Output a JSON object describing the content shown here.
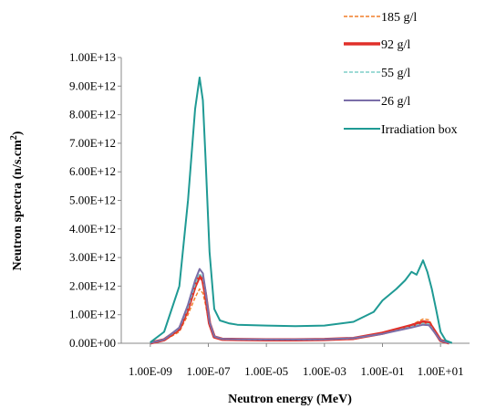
{
  "chart_data": {
    "type": "line",
    "xlabel": "Neutron energy (MeV)",
    "ylabel_main": "Neutron spectra (n/s.cm",
    "ylabel_sup": "2",
    "ylabel_end": ")",
    "xscale": "log",
    "xlim": [
      1e-10,
      100
    ],
    "ylim": [
      0,
      10000000000000.0
    ],
    "y_ticks": [
      0,
      1000000000000.0,
      2000000000000.0,
      3000000000000.0,
      4000000000000.0,
      5000000000000.0,
      6000000000000.0,
      7000000000000.0,
      8000000000000.0,
      9000000000000.0,
      10000000000000.0
    ],
    "y_tick_labels": [
      "0.00E+00",
      "1.00E+12",
      "2.00E+12",
      "3.00E+12",
      "4.00E+12",
      "5.00E+12",
      "6.00E+12",
      "7.00E+12",
      "8.00E+12",
      "9.00E+12",
      "1.00E+13"
    ],
    "x_ticks": [
      1e-09,
      1e-07,
      1e-05,
      0.001,
      0.1,
      10
    ],
    "x_tick_labels": [
      "1.00E-09",
      "1.00E-07",
      "1.00E-05",
      "1.00E-03",
      "1.00E-01",
      "1.00E+01"
    ],
    "grid": false,
    "legend_position": "top-right",
    "series": [
      {
        "name": "185 g/l",
        "color": "#f07f2a",
        "style": "dashed",
        "points": [
          [
            1e-09,
            10000000000.0
          ],
          [
            3e-09,
            100000000000.0
          ],
          [
            1e-08,
            400000000000.0
          ],
          [
            2e-08,
            1000000000000.0
          ],
          [
            3.5e-08,
            1600000000000.0
          ],
          [
            5e-08,
            1900000000000.0
          ],
          [
            6.5e-08,
            1750000000000.0
          ],
          [
            8e-08,
            1350000000000.0
          ],
          [
            1.1e-07,
            600000000000.0
          ],
          [
            1.6e-07,
            200000000000.0
          ],
          [
            3e-07,
            130000000000.0
          ],
          [
            1e-06,
            120000000000.0
          ],
          [
            1e-05,
            110000000000.0
          ],
          [
            0.0001,
            110000000000.0
          ],
          [
            0.001,
            120000000000.0
          ],
          [
            0.01,
            160000000000.0
          ],
          [
            0.1,
            350000000000.0
          ],
          [
            1,
            650000000000.0
          ],
          [
            2.5,
            850000000000.0
          ],
          [
            4,
            820000000000.0
          ],
          [
            6,
            500000000000.0
          ],
          [
            10,
            100000000000.0
          ],
          [
            20,
            10000000000.0
          ]
        ]
      },
      {
        "name": "92 g/l",
        "color": "#e0302a",
        "style": "thick",
        "points": [
          [
            1e-09,
            10000000000.0
          ],
          [
            3e-09,
            120000000000.0
          ],
          [
            1e-08,
            500000000000.0
          ],
          [
            2e-08,
            1200000000000.0
          ],
          [
            3.5e-08,
            2000000000000.0
          ],
          [
            5e-08,
            2350000000000.0
          ],
          [
            6.5e-08,
            2200000000000.0
          ],
          [
            8e-08,
            1700000000000.0
          ],
          [
            1.1e-07,
            700000000000.0
          ],
          [
            1.6e-07,
            220000000000.0
          ],
          [
            3e-07,
            140000000000.0
          ],
          [
            1e-06,
            130000000000.0
          ],
          [
            1e-05,
            120000000000.0
          ],
          [
            0.0001,
            120000000000.0
          ],
          [
            0.001,
            130000000000.0
          ],
          [
            0.01,
            170000000000.0
          ],
          [
            0.1,
            350000000000.0
          ],
          [
            1,
            620000000000.0
          ],
          [
            2.5,
            750000000000.0
          ],
          [
            4,
            720000000000.0
          ],
          [
            6,
            450000000000.0
          ],
          [
            10,
            100000000000.0
          ],
          [
            20,
            10000000000.0
          ]
        ]
      },
      {
        "name": "55 g/l",
        "color": "#7fcfc8",
        "style": "dashed",
        "points": [
          [
            1e-09,
            10000000000.0
          ],
          [
            3e-09,
            120000000000.0
          ],
          [
            1e-08,
            520000000000.0
          ],
          [
            2e-08,
            1250000000000.0
          ],
          [
            3.5e-08,
            2050000000000.0
          ],
          [
            5e-08,
            2450000000000.0
          ],
          [
            6.5e-08,
            2300000000000.0
          ],
          [
            8e-08,
            1750000000000.0
          ],
          [
            1.1e-07,
            720000000000.0
          ],
          [
            1.6e-07,
            230000000000.0
          ],
          [
            3e-07,
            140000000000.0
          ],
          [
            1e-06,
            130000000000.0
          ],
          [
            1e-05,
            120000000000.0
          ],
          [
            0.0001,
            120000000000.0
          ],
          [
            0.001,
            130000000000.0
          ],
          [
            0.01,
            170000000000.0
          ],
          [
            0.1,
            330000000000.0
          ],
          [
            1,
            580000000000.0
          ],
          [
            2.5,
            700000000000.0
          ],
          [
            4,
            680000000000.0
          ],
          [
            6,
            420000000000.0
          ],
          [
            10,
            100000000000.0
          ],
          [
            20,
            10000000000.0
          ]
        ]
      },
      {
        "name": "26 g/l",
        "color": "#7a6ea8",
        "style": "solid",
        "points": [
          [
            1e-09,
            10000000000.0
          ],
          [
            3e-09,
            130000000000.0
          ],
          [
            1e-08,
            550000000000.0
          ],
          [
            2e-08,
            1350000000000.0
          ],
          [
            3.5e-08,
            2200000000000.0
          ],
          [
            5e-08,
            2600000000000.0
          ],
          [
            6.5e-08,
            2450000000000.0
          ],
          [
            8e-08,
            1850000000000.0
          ],
          [
            1.1e-07,
            750000000000.0
          ],
          [
            1.6e-07,
            240000000000.0
          ],
          [
            3e-07,
            150000000000.0
          ],
          [
            1e-06,
            140000000000.0
          ],
          [
            1e-05,
            130000000000.0
          ],
          [
            0.0001,
            130000000000.0
          ],
          [
            0.001,
            140000000000.0
          ],
          [
            0.01,
            180000000000.0
          ],
          [
            0.1,
            330000000000.0
          ],
          [
            1,
            550000000000.0
          ],
          [
            2.5,
            650000000000.0
          ],
          [
            4,
            630000000000.0
          ],
          [
            6,
            400000000000.0
          ],
          [
            10,
            100000000000.0
          ],
          [
            20,
            10000000000.0
          ]
        ]
      },
      {
        "name": "Irradiation box",
        "color": "#1f9a94",
        "style": "solid",
        "points": [
          [
            1e-09,
            30000000000.0
          ],
          [
            3e-09,
            400000000000.0
          ],
          [
            1e-08,
            2000000000000.0
          ],
          [
            2e-08,
            5000000000000.0
          ],
          [
            3.5e-08,
            8200000000000.0
          ],
          [
            5e-08,
            9300000000000.0
          ],
          [
            6.5e-08,
            8500000000000.0
          ],
          [
            8e-08,
            6500000000000.0
          ],
          [
            1.1e-07,
            3200000000000.0
          ],
          [
            1.6e-07,
            1200000000000.0
          ],
          [
            2.5e-07,
            800000000000.0
          ],
          [
            5e-07,
            700000000000.0
          ],
          [
            1e-06,
            650000000000.0
          ],
          [
            1e-05,
            620000000000.0
          ],
          [
            0.0001,
            600000000000.0
          ],
          [
            0.001,
            620000000000.0
          ],
          [
            0.01,
            750000000000.0
          ],
          [
            0.05,
            1100000000000.0
          ],
          [
            0.1,
            1500000000000.0
          ],
          [
            0.3,
            1900000000000.0
          ],
          [
            0.6,
            2200000000000.0
          ],
          [
            1,
            2500000000000.0
          ],
          [
            1.5,
            2400000000000.0
          ],
          [
            2.5,
            2900000000000.0
          ],
          [
            3.5,
            2500000000000.0
          ],
          [
            5,
            1900000000000.0
          ],
          [
            7,
            1200000000000.0
          ],
          [
            10,
            400000000000.0
          ],
          [
            15,
            100000000000.0
          ],
          [
            25,
            10000000000.0
          ]
        ]
      }
    ]
  }
}
